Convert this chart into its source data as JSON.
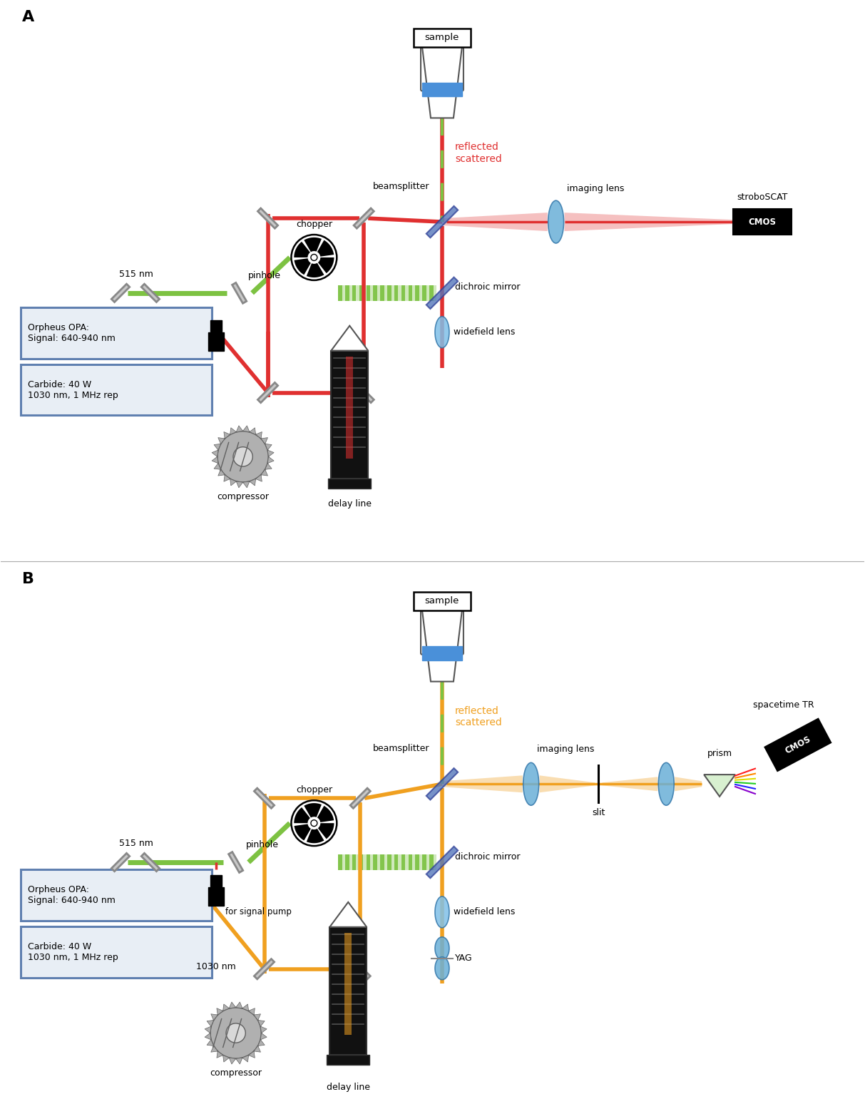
{
  "bg_color": "#ffffff",
  "green_color": "#7dc242",
  "red_color": "#e03030",
  "orange_color": "#f0a020",
  "blue_color": "#6ab0d8",
  "dark_blue_color": "#5577bb",
  "gray_color": "#909090",
  "light_gray": "#c8c8c8",
  "box_bg_fill": "#e8eef5",
  "box_bg_border": "#6080b0",
  "panel_A": {
    "opa_label": "Orpheus OPA:\nSignal: 640-940 nm",
    "carbide_label": "Carbide: 40 W\n1030 nm, 1 MHz rep"
  },
  "panel_B": {
    "opa_label": "Orpheus OPA:\nSignal: 640-940 nm",
    "carbide_label": "Carbide: 40 W\n1030 nm, 1 MHz rep"
  }
}
